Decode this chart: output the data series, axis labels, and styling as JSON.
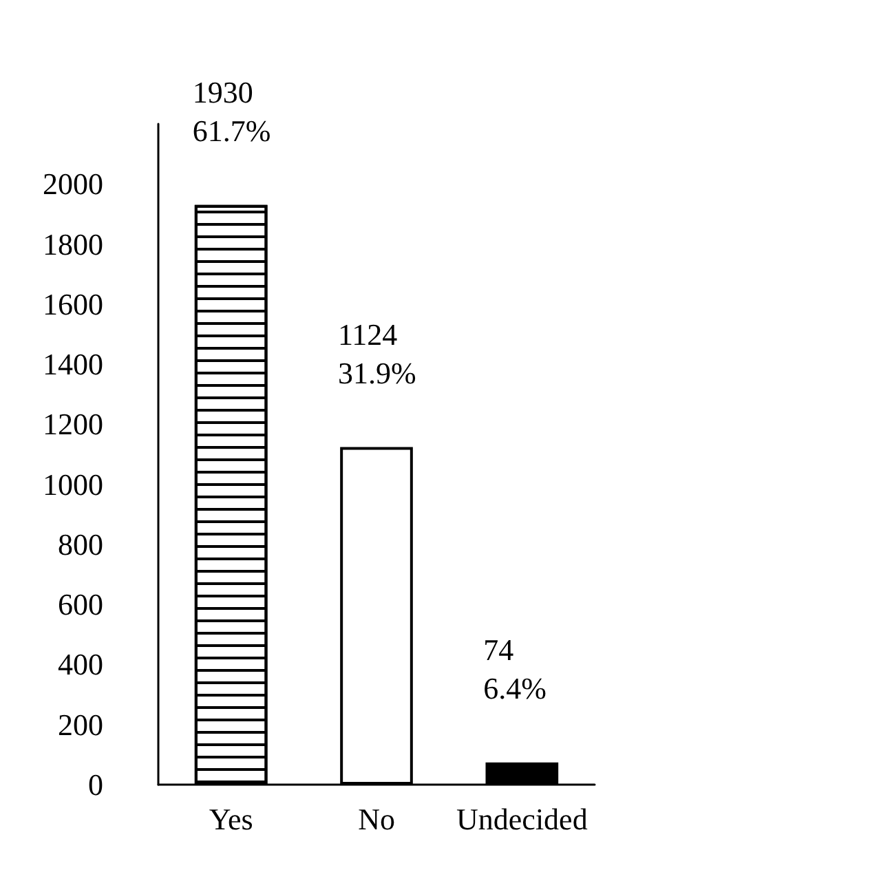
{
  "chart_data": {
    "type": "bar",
    "categories": [
      "Yes",
      "No",
      "Undecided"
    ],
    "values": [
      1930,
      1124,
      74
    ],
    "colors": [
      "#ffffff",
      "#ffffff",
      "#000000"
    ],
    "value_labels": [
      "1930\n61.7%",
      "1124\n31.9%",
      "74\n6.4%"
    ],
    "ylim": [
      0,
      2200
    ],
    "yticks": [
      0,
      200,
      400,
      600,
      800,
      1000,
      1200,
      1400,
      1600,
      1800,
      2000
    ],
    "ylabel": null
  }
}
